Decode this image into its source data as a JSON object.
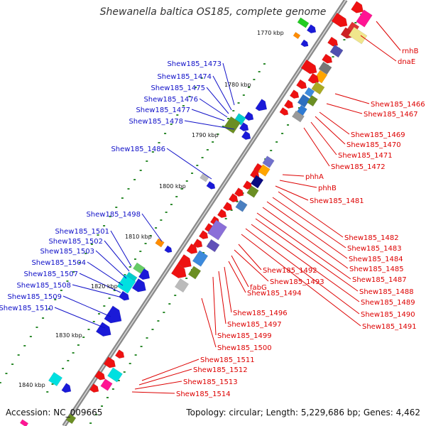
{
  "title": "Shewanella baltica OS185, complete genome",
  "footer": {
    "accession": "Accession: NC_009665",
    "summary": "Topology: circular; Length: 5,229,686 bp; Genes: 4,462"
  },
  "colors": {
    "backbone": "#8a8a8a",
    "left_label": "#1010c8",
    "right_label": "#dd0000"
  },
  "scale": [
    "1770 kbp",
    "1780 kbp",
    "1790 kbp",
    "1800 kbp",
    "1810 kbp",
    "1820 kbp",
    "1830 kbp",
    "1840 kbp"
  ],
  "left_labels": [
    "Shew185_1473",
    "Shew185_1474",
    "Shew185_1475",
    "Shew185_1476",
    "Shew185_1477",
    "Shew185_1478",
    "Shew185_1486",
    "Shew185_1498",
    "Shew185_1501",
    "Shew185_1502",
    "Shew185_1503",
    "Shew185_1504",
    "Shew185_1507",
    "Shew185_1508",
    "Shew185_1509",
    "Shew185_1510"
  ],
  "right_labels": [
    "rnhB",
    "dnaE",
    "Shew185_1466",
    "Shew185_1467",
    "Shew185_1469",
    "Shew185_1470",
    "Shew185_1471",
    "Shew185_1472",
    "phhA",
    "phhB",
    "Shew185_1481",
    "Shew185_1482",
    "Shew185_1483",
    "Shew185_1484",
    "Shew185_1485",
    "Shew185_1487",
    "Shew185_1488",
    "Shew185_1489",
    "Shew185_1490",
    "Shew185_1491",
    "Shew185_1492",
    "Shew185_1493",
    "fabG",
    "Shew185_1494",
    "Shew185_1496",
    "Shew185_1497",
    "Shew185_1499",
    "Shew185_1500",
    "Shew185_1511",
    "Shew185_1512",
    "Shew185_1513",
    "Shew185_1514"
  ]
}
